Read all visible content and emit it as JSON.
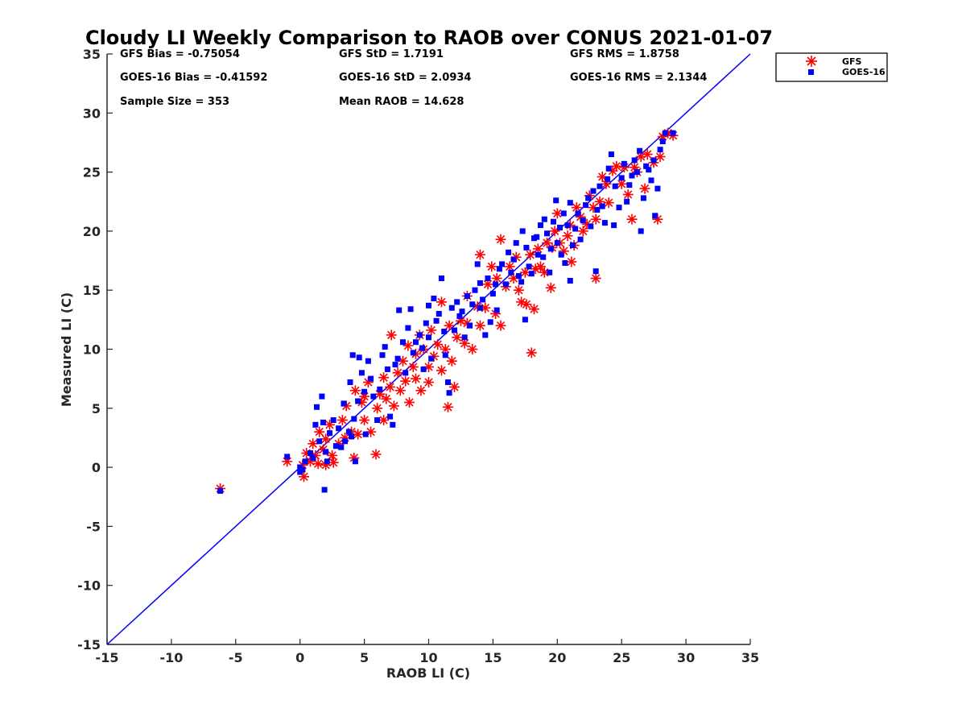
{
  "chart_data": {
    "type": "scatter",
    "title": "Cloudy LI Weekly Comparison to RAOB over CONUS 2021-01-07",
    "xlabel": "RAOB LI (C)",
    "ylabel": "Measured LI (C)",
    "xlim": [
      -15,
      35
    ],
    "ylim": [
      -15,
      35
    ],
    "xticks": [
      "-15",
      "-10",
      "-5",
      "0",
      "5",
      "10",
      "15",
      "20",
      "25",
      "30",
      "35"
    ],
    "yticks": [
      "-15",
      "-10",
      "-5",
      "0",
      "5",
      "10",
      "15",
      "20",
      "25",
      "30",
      "35"
    ],
    "grid": false,
    "legend_position": "top-right, outside plot",
    "reference_line": {
      "x": [
        -15,
        35
      ],
      "y": [
        -15,
        35
      ],
      "color": "#0000ff"
    },
    "stats": [
      {
        "label": "GFS Bias = -0.75054"
      },
      {
        "label": "GFS StD = 1.7191"
      },
      {
        "label": "GFS RMS = 1.8758"
      },
      {
        "label": "GOES-16 Bias = -0.41592"
      },
      {
        "label": "GOES-16 StD = 2.0934"
      },
      {
        "label": "GOES-16 RMS = 2.1344"
      },
      {
        "label": "Sample Size = 353"
      },
      {
        "label": "Mean RAOB = 14.628"
      }
    ],
    "series": [
      {
        "name": "GFS",
        "marker": "asterisk",
        "color": "#ff0000",
        "points": [
          [
            -6.2,
            -1.8
          ],
          [
            -1,
            0.5
          ],
          [
            0.2,
            0.2
          ],
          [
            0.3,
            -0.8
          ],
          [
            0.5,
            1.2
          ],
          [
            0.8,
            0.5
          ],
          [
            1,
            2
          ],
          [
            1.2,
            1
          ],
          [
            1.4,
            0.3
          ],
          [
            1.5,
            3
          ],
          [
            1.8,
            1.5
          ],
          [
            2,
            0.2
          ],
          [
            2,
            2.4
          ],
          [
            2.3,
            3.6
          ],
          [
            2.5,
            1
          ],
          [
            2.6,
            0.4
          ],
          [
            3,
            2
          ],
          [
            3.3,
            4
          ],
          [
            3.5,
            2.5
          ],
          [
            3.6,
            5.2
          ],
          [
            4,
            3
          ],
          [
            4.2,
            0.8
          ],
          [
            4.3,
            6.5
          ],
          [
            4.5,
            2.8
          ],
          [
            4.8,
            5.5
          ],
          [
            5,
            4
          ],
          [
            5,
            6
          ],
          [
            5.3,
            7.2
          ],
          [
            5.5,
            3
          ],
          [
            5.9,
            1.1
          ],
          [
            6,
            5
          ],
          [
            6.2,
            6.2
          ],
          [
            6.5,
            4
          ],
          [
            6.5,
            7.6
          ],
          [
            6.7,
            5.8
          ],
          [
            7,
            6.8
          ],
          [
            7.1,
            11.2
          ],
          [
            7.3,
            5.2
          ],
          [
            7.6,
            8
          ],
          [
            7.8,
            6.5
          ],
          [
            8,
            9
          ],
          [
            8.2,
            7.3
          ],
          [
            8.4,
            10.3
          ],
          [
            8.5,
            5.5
          ],
          [
            8.8,
            8.5
          ],
          [
            9,
            7.5
          ],
          [
            9,
            9.6
          ],
          [
            9.3,
            11.2
          ],
          [
            9.4,
            6.5
          ],
          [
            9.6,
            10
          ],
          [
            10,
            8.5
          ],
          [
            10,
            7.2
          ],
          [
            10.2,
            11.6
          ],
          [
            10.4,
            9.4
          ],
          [
            10.7,
            10.4
          ],
          [
            11,
            8.2
          ],
          [
            11,
            14
          ],
          [
            11.3,
            10
          ],
          [
            11.5,
            5.1
          ],
          [
            11.6,
            12
          ],
          [
            11.8,
            9
          ],
          [
            12,
            6.8
          ],
          [
            12.2,
            11
          ],
          [
            12.5,
            12.4
          ],
          [
            12.8,
            10.5
          ],
          [
            13,
            12.2
          ],
          [
            13,
            14.5
          ],
          [
            13.4,
            10
          ],
          [
            13.8,
            13.6
          ],
          [
            14,
            12
          ],
          [
            14,
            18
          ],
          [
            14.4,
            13.5
          ],
          [
            14.6,
            15.5
          ],
          [
            14.9,
            17
          ],
          [
            15.2,
            13
          ],
          [
            15.3,
            16
          ],
          [
            15.6,
            12
          ],
          [
            15.6,
            19.3
          ],
          [
            16,
            15.3
          ],
          [
            16.3,
            17
          ],
          [
            16.6,
            16
          ],
          [
            16.8,
            17.8
          ],
          [
            17,
            15
          ],
          [
            17.2,
            14
          ],
          [
            17.5,
            16.5
          ],
          [
            17.6,
            13.8
          ],
          [
            17.9,
            18
          ],
          [
            18,
            9.7
          ],
          [
            18.2,
            13.4
          ],
          [
            18.3,
            16.8
          ],
          [
            18.5,
            18.5
          ],
          [
            18.7,
            17
          ],
          [
            19,
            16.5
          ],
          [
            19.2,
            19
          ],
          [
            19.5,
            15.2
          ],
          [
            19.6,
            18.6
          ],
          [
            19.8,
            20
          ],
          [
            20,
            21.5
          ],
          [
            20.2,
            19
          ],
          [
            20.5,
            18.3
          ],
          [
            20.8,
            19.6
          ],
          [
            21,
            20.5
          ],
          [
            21.1,
            17.4
          ],
          [
            21.3,
            18.8
          ],
          [
            21.5,
            22
          ],
          [
            21.8,
            21.2
          ],
          [
            22,
            20
          ],
          [
            22.3,
            20.6
          ],
          [
            22.5,
            23
          ],
          [
            22.8,
            22
          ],
          [
            23,
            16
          ],
          [
            23,
            21
          ],
          [
            23.3,
            22.5
          ],
          [
            23.5,
            24.6
          ],
          [
            23.8,
            24
          ],
          [
            24,
            22.4
          ],
          [
            24.3,
            25.1
          ],
          [
            24.6,
            25.5
          ],
          [
            25,
            24
          ],
          [
            25.2,
            25.4
          ],
          [
            25.5,
            23.1
          ],
          [
            25.8,
            21
          ],
          [
            26,
            25.4
          ],
          [
            26.2,
            25
          ],
          [
            26.5,
            26.3
          ],
          [
            26.8,
            23.6
          ],
          [
            27,
            26.5
          ],
          [
            27.5,
            25.8
          ],
          [
            27.8,
            21
          ],
          [
            28,
            26.3
          ],
          [
            28.2,
            28
          ],
          [
            28.6,
            28.3
          ],
          [
            29,
            28.1
          ]
        ]
      },
      {
        "name": "GOES-16",
        "marker": "square",
        "color": "#0000ff",
        "points": [
          [
            -6.2,
            -2
          ],
          [
            -1,
            0.9
          ],
          [
            0,
            0
          ],
          [
            0,
            -0.4
          ],
          [
            0.2,
            -0.2
          ],
          [
            0.4,
            0.5
          ],
          [
            0.8,
            1.2
          ],
          [
            1,
            0.8
          ],
          [
            1.2,
            3.6
          ],
          [
            1.3,
            5.1
          ],
          [
            1.5,
            2.2
          ],
          [
            1.7,
            6
          ],
          [
            1.8,
            3.8
          ],
          [
            1.9,
            -1.9
          ],
          [
            2,
            1.3
          ],
          [
            2.1,
            0.5
          ],
          [
            2.3,
            2.9
          ],
          [
            2.6,
            4
          ],
          [
            2.8,
            1.8
          ],
          [
            3,
            3.3
          ],
          [
            3.2,
            1.7
          ],
          [
            3.4,
            5.4
          ],
          [
            3.5,
            2.2
          ],
          [
            3.8,
            3
          ],
          [
            3.9,
            7.2
          ],
          [
            4,
            2.6
          ],
          [
            4.1,
            9.5
          ],
          [
            4.2,
            4.1
          ],
          [
            4.3,
            0.5
          ],
          [
            4.5,
            5.6
          ],
          [
            4.6,
            9.3
          ],
          [
            4.8,
            8
          ],
          [
            5,
            6.4
          ],
          [
            5.1,
            2.8
          ],
          [
            5.3,
            9
          ],
          [
            5.5,
            7.5
          ],
          [
            5.7,
            6
          ],
          [
            6,
            4
          ],
          [
            6.2,
            6.6
          ],
          [
            6.4,
            9.5
          ],
          [
            6.6,
            10.2
          ],
          [
            6.8,
            8.3
          ],
          [
            7,
            4.3
          ],
          [
            7.2,
            3.6
          ],
          [
            7.4,
            8.7
          ],
          [
            7.6,
            9.2
          ],
          [
            7.7,
            13.3
          ],
          [
            8,
            10.6
          ],
          [
            8.2,
            8
          ],
          [
            8.4,
            11.8
          ],
          [
            8.6,
            13.4
          ],
          [
            8.8,
            9.7
          ],
          [
            9,
            10.6
          ],
          [
            9.3,
            11.2
          ],
          [
            9.5,
            10.1
          ],
          [
            9.6,
            8.3
          ],
          [
            9.8,
            12.2
          ],
          [
            10,
            13.7
          ],
          [
            10,
            11
          ],
          [
            10.2,
            9.2
          ],
          [
            10.4,
            14.3
          ],
          [
            10.6,
            12.4
          ],
          [
            10.8,
            13
          ],
          [
            11,
            16
          ],
          [
            11.2,
            11.5
          ],
          [
            11.3,
            9.5
          ],
          [
            11.5,
            7.2
          ],
          [
            11.6,
            6.3
          ],
          [
            11.8,
            13.5
          ],
          [
            12,
            11.6
          ],
          [
            12.2,
            14
          ],
          [
            12.4,
            12.8
          ],
          [
            12.6,
            13.2
          ],
          [
            12.8,
            11
          ],
          [
            13,
            14.5
          ],
          [
            13.2,
            12
          ],
          [
            13.4,
            13.8
          ],
          [
            13.6,
            15
          ],
          [
            13.8,
            17.2
          ],
          [
            14,
            13.5
          ],
          [
            14,
            15.6
          ],
          [
            14.2,
            14.2
          ],
          [
            14.4,
            11.2
          ],
          [
            14.6,
            16
          ],
          [
            14.8,
            12.3
          ],
          [
            15,
            14.7
          ],
          [
            15.2,
            15.5
          ],
          [
            15.3,
            13.3
          ],
          [
            15.5,
            16.8
          ],
          [
            15.7,
            17.2
          ],
          [
            16,
            15.5
          ],
          [
            16.2,
            18.2
          ],
          [
            16.4,
            16.5
          ],
          [
            16.6,
            17.6
          ],
          [
            16.8,
            19
          ],
          [
            17,
            16.2
          ],
          [
            17.2,
            15.7
          ],
          [
            17.3,
            20
          ],
          [
            17.5,
            12.5
          ],
          [
            17.6,
            18.6
          ],
          [
            17.8,
            17
          ],
          [
            18,
            16.4
          ],
          [
            18.2,
            19.4
          ],
          [
            18.4,
            19.5
          ],
          [
            18.5,
            18
          ],
          [
            18.7,
            20.5
          ],
          [
            18.9,
            17.8
          ],
          [
            19,
            21
          ],
          [
            19.2,
            19.8
          ],
          [
            19.4,
            16.5
          ],
          [
            19.5,
            18.5
          ],
          [
            19.7,
            20.8
          ],
          [
            19.9,
            22.6
          ],
          [
            20,
            19
          ],
          [
            20.2,
            20.3
          ],
          [
            20.3,
            18
          ],
          [
            20.5,
            21.5
          ],
          [
            20.6,
            17.3
          ],
          [
            20.8,
            20.5
          ],
          [
            21,
            22.4
          ],
          [
            21,
            15.8
          ],
          [
            21.2,
            18.8
          ],
          [
            21.4,
            20.2
          ],
          [
            21.6,
            21.5
          ],
          [
            21.8,
            19.3
          ],
          [
            22,
            20.9
          ],
          [
            22.2,
            22.2
          ],
          [
            22.4,
            22.8
          ],
          [
            22.6,
            20.4
          ],
          [
            22.8,
            23.4
          ],
          [
            23,
            16.6
          ],
          [
            23.1,
            21.8
          ],
          [
            23.3,
            23.8
          ],
          [
            23.5,
            22.1
          ],
          [
            23.7,
            20.7
          ],
          [
            23.9,
            24.4
          ],
          [
            24,
            25.3
          ],
          [
            24.2,
            26.5
          ],
          [
            24.4,
            20.5
          ],
          [
            24.5,
            23.8
          ],
          [
            24.8,
            22
          ],
          [
            25,
            24.5
          ],
          [
            25.2,
            25.7
          ],
          [
            25.4,
            22.5
          ],
          [
            25.6,
            23.9
          ],
          [
            25.8,
            24.7
          ],
          [
            26,
            26
          ],
          [
            26.2,
            25
          ],
          [
            26.4,
            26.8
          ],
          [
            26.5,
            20
          ],
          [
            26.7,
            22.8
          ],
          [
            26.9,
            25.5
          ],
          [
            27.1,
            25.2
          ],
          [
            27.3,
            24.3
          ],
          [
            27.5,
            26
          ],
          [
            27.6,
            21.3
          ],
          [
            27.8,
            23.6
          ],
          [
            28,
            26.9
          ],
          [
            28.2,
            27.6
          ],
          [
            28.4,
            28.3
          ],
          [
            29,
            28.3
          ]
        ]
      }
    ]
  }
}
